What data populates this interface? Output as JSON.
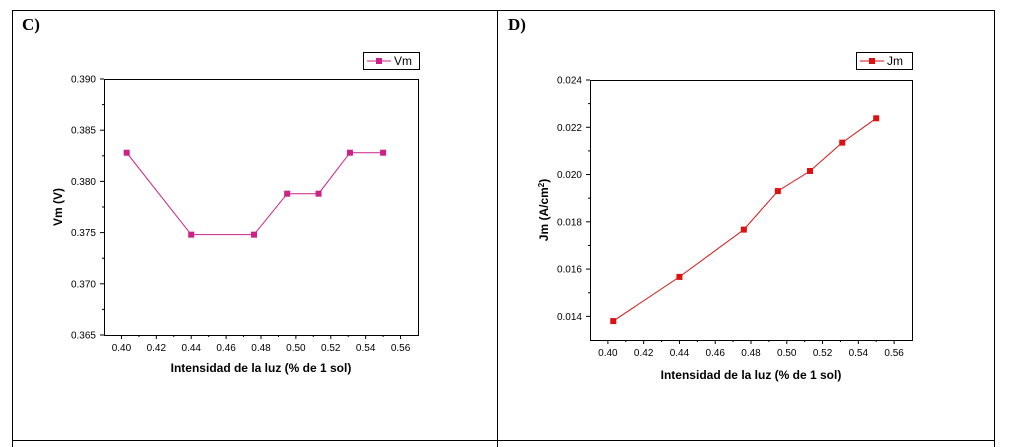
{
  "chart_data": [
    {
      "panel": "C)",
      "type": "line",
      "xlabel": "Intensidad de la luz (% de 1 sol)",
      "ylabel": "Vm (V)",
      "xlim": [
        0.39,
        0.57
      ],
      "ylim": [
        0.365,
        0.39
      ],
      "xticks": [
        "0.40",
        "0.42",
        "0.44",
        "0.46",
        "0.48",
        "0.50",
        "0.52",
        "0.54",
        "0.56"
      ],
      "yticks": [
        "0.365",
        "0.370",
        "0.375",
        "0.380",
        "0.385",
        "0.390"
      ],
      "legend_position": "top-right",
      "color": "#cc2288",
      "series": [
        {
          "name": "Vm",
          "x": [
            0.403,
            0.44,
            0.476,
            0.495,
            0.513,
            0.531,
            0.55
          ],
          "y": [
            0.3828,
            0.3748,
            0.3748,
            0.3788,
            0.3788,
            0.3828,
            0.3828
          ]
        }
      ]
    },
    {
      "panel": "D)",
      "type": "line",
      "xlabel": "Intensidad de la luz (% de 1 sol)",
      "ylabel": "Jm (A/cm",
      "ylabel_sup": "2",
      "ylabel_end": ")",
      "xlim": [
        0.39,
        0.57
      ],
      "ylim": [
        0.013,
        0.024
      ],
      "xticks": [
        "0.40",
        "0.42",
        "0.44",
        "0.46",
        "0.48",
        "0.50",
        "0.52",
        "0.54",
        "0.56"
      ],
      "yticks": [
        "0.014",
        "0.016",
        "0.018",
        "0.020",
        "0.022",
        "0.024"
      ],
      "legend_position": "top-right",
      "color": "#dd1111",
      "series": [
        {
          "name": "Jm",
          "x": [
            0.403,
            0.44,
            0.476,
            0.495,
            0.513,
            0.531,
            0.55
          ],
          "y": [
            0.0138,
            0.01567,
            0.01767,
            0.0193,
            0.02015,
            0.02135,
            0.02238
          ]
        }
      ]
    }
  ]
}
